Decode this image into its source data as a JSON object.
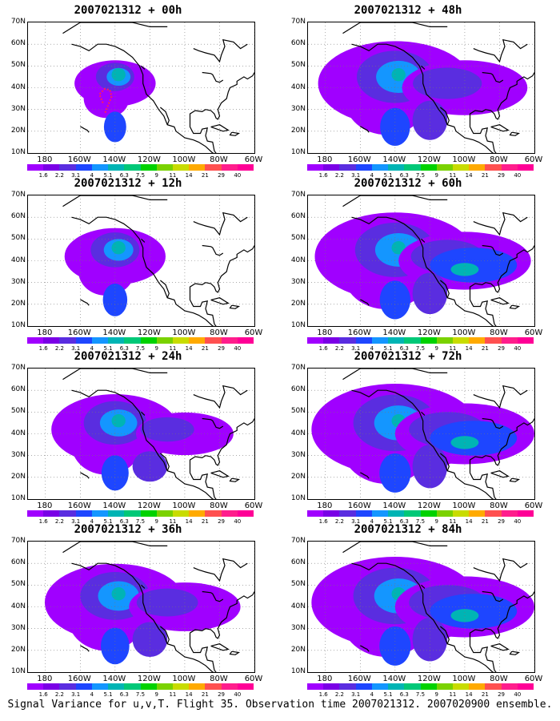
{
  "caption": "Signal Variance for u,v,T. Flight 35. Observation time 2007021312. 2007020900 ensemble.",
  "lat_labels": [
    "70N",
    "60N",
    "50N",
    "40N",
    "30N",
    "20N",
    "10N"
  ],
  "lon_labels": [
    "180",
    "160W",
    "140W",
    "120W",
    "100W",
    "80W",
    "60W"
  ],
  "colorbar": {
    "labels": [
      "1.6",
      "2.2",
      "3.1",
      "4",
      "5.1",
      "6.3",
      "7.5",
      "9",
      "11",
      "14",
      "21",
      "29",
      "40"
    ],
    "colors": [
      "#a000ff",
      "#7a00e6",
      "#5a2de0",
      "#1e46ff",
      "#1496ff",
      "#00b4b4",
      "#00c878",
      "#00d200",
      "#7ad200",
      "#c8dc00",
      "#ffaa00",
      "#ff5050",
      "#ff1e8c",
      "#ff0096"
    ]
  },
  "panels": [
    {
      "title": "2007021312 + 00h",
      "col": 0,
      "row": 0,
      "spread": 0.35,
      "marker": true
    },
    {
      "title": "2007021312 + 12h",
      "col": 0,
      "row": 1,
      "spread": 0.5,
      "marker": false
    },
    {
      "title": "2007021312 + 24h",
      "col": 0,
      "row": 2,
      "spread": 0.7,
      "marker": false
    },
    {
      "title": "2007021312 + 36h",
      "col": 0,
      "row": 3,
      "spread": 0.8,
      "marker": false
    },
    {
      "title": "2007021312 + 48h",
      "col": 1,
      "row": 0,
      "spread": 0.9,
      "marker": false
    },
    {
      "title": "2007021312 + 60h",
      "col": 1,
      "row": 1,
      "spread": 0.95,
      "marker": false
    },
    {
      "title": "2007021312 + 72h",
      "col": 1,
      "row": 2,
      "spread": 1.0,
      "marker": false
    },
    {
      "title": "2007021312 + 84h",
      "col": 1,
      "row": 3,
      "spread": 1.0,
      "marker": false
    }
  ]
}
